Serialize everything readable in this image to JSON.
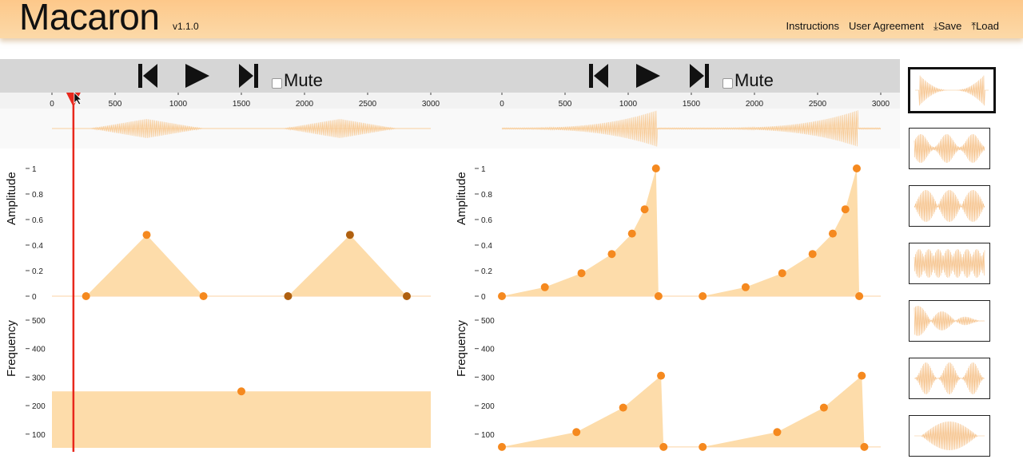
{
  "app": {
    "title": "Macaron",
    "version": "v1.1.0"
  },
  "nav": {
    "instructions": "Instructions",
    "user_agreement": "User Agreement",
    "save": "Save",
    "load": "Load"
  },
  "players": [
    {
      "mute_label": "Mute",
      "muted": false
    },
    {
      "mute_label": "Mute",
      "muted": false
    }
  ],
  "timeline": {
    "ticks": [
      "0",
      "500",
      "1000",
      "1500",
      "2000",
      "2500",
      "3000"
    ],
    "playhead_ms": 170
  },
  "axes": {
    "amplitude_label": "Amplitude",
    "frequency_label": "Frequency",
    "amplitude_ticks": [
      "1",
      "0.8",
      "0.6",
      "0.4",
      "0.2",
      "0"
    ],
    "frequency_ticks": [
      "500",
      "400",
      "300",
      "200",
      "100"
    ]
  },
  "left_editor": {
    "amplitude_keyframes": [
      {
        "t": 270,
        "v": 0
      },
      {
        "t": 750,
        "v": 0.48
      },
      {
        "t": 1200,
        "v": 0
      },
      {
        "t": 1870,
        "v": 0,
        "selected": true
      },
      {
        "t": 2360,
        "v": 0.48,
        "selected": true
      },
      {
        "t": 2810,
        "v": 0,
        "selected": true
      }
    ],
    "frequency_keyframes": [
      {
        "t": 1500,
        "v": 250
      }
    ]
  },
  "right_editor": {
    "amplitude_keyframes": [
      {
        "t": 0,
        "v": 0
      },
      {
        "t": 340,
        "v": 0.07
      },
      {
        "t": 630,
        "v": 0.18
      },
      {
        "t": 870,
        "v": 0.33
      },
      {
        "t": 1030,
        "v": 0.49
      },
      {
        "t": 1130,
        "v": 0.68
      },
      {
        "t": 1220,
        "v": 1
      },
      {
        "t": 1240,
        "v": 0
      },
      {
        "t": 1590,
        "v": 0
      },
      {
        "t": 1930,
        "v": 0.07
      },
      {
        "t": 2220,
        "v": 0.18
      },
      {
        "t": 2460,
        "v": 0.33
      },
      {
        "t": 2620,
        "v": 0.49
      },
      {
        "t": 2720,
        "v": 0.68
      },
      {
        "t": 2810,
        "v": 1
      },
      {
        "t": 2830,
        "v": 0
      }
    ],
    "frequency_keyframes": [
      {
        "t": 0,
        "v": 55
      },
      {
        "t": 590,
        "v": 107
      },
      {
        "t": 960,
        "v": 193
      },
      {
        "t": 1260,
        "v": 305
      },
      {
        "t": 1280,
        "v": 55
      },
      {
        "t": 1590,
        "v": 55
      },
      {
        "t": 2180,
        "v": 107
      },
      {
        "t": 2550,
        "v": 193
      },
      {
        "t": 2850,
        "v": 305
      },
      {
        "t": 2870,
        "v": 55
      }
    ]
  },
  "gallery": [
    {
      "name": "sweep",
      "selected": true
    },
    {
      "name": "irregular"
    },
    {
      "name": "triple-pulse"
    },
    {
      "name": "buzz"
    },
    {
      "name": "decay"
    },
    {
      "name": "pulses"
    },
    {
      "name": "dense-burst"
    }
  ],
  "colors": {
    "accent": "#f5891f",
    "accent_dark": "#b0600f",
    "fill": "#fddcaa",
    "playhead": "#e8281d",
    "header": "#fdc88a"
  }
}
